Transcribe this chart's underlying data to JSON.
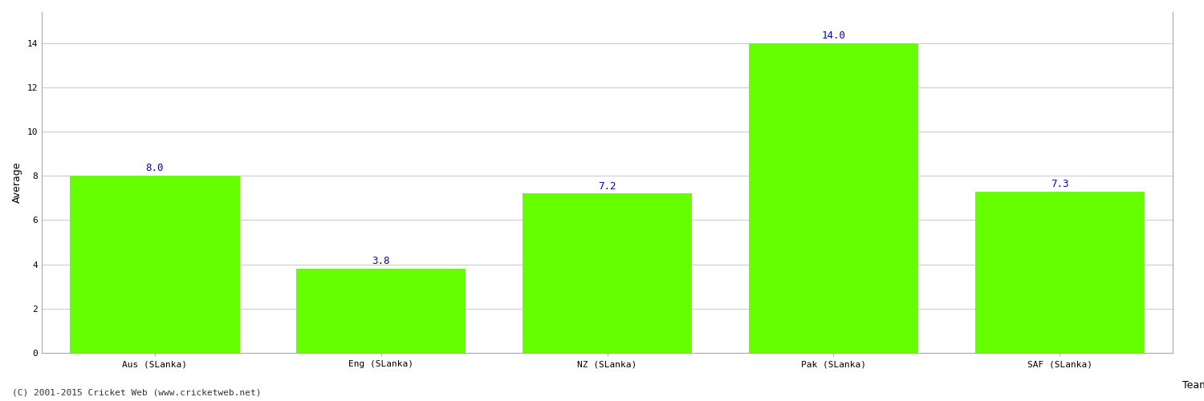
{
  "categories": [
    "Aus (SLanka)",
    "Eng (SLanka)",
    "NZ (SLanka)",
    "Pak (SLanka)",
    "SAF (SLanka)"
  ],
  "values": [
    8.0,
    3.8,
    7.2,
    14.0,
    7.3
  ],
  "bar_color": "#66FF00",
  "bar_edgecolor": "#66FF00",
  "value_color": "#0000CC",
  "value_fontsize": 9,
  "xlabel": "Team",
  "ylabel": "Average",
  "xlabel_fontsize": 9,
  "ylabel_fontsize": 9,
  "tick_fontsize": 8,
  "ylim": [
    0,
    15.4
  ],
  "yticks": [
    0,
    2,
    4,
    6,
    8,
    10,
    12,
    14
  ],
  "grid_color": "#cccccc",
  "background_color": "#ffffff",
  "footer_text": "(C) 2001-2015 Cricket Web (www.cricketweb.net)",
  "footer_fontsize": 8,
  "footer_color": "#333333",
  "bar_width": 0.75
}
